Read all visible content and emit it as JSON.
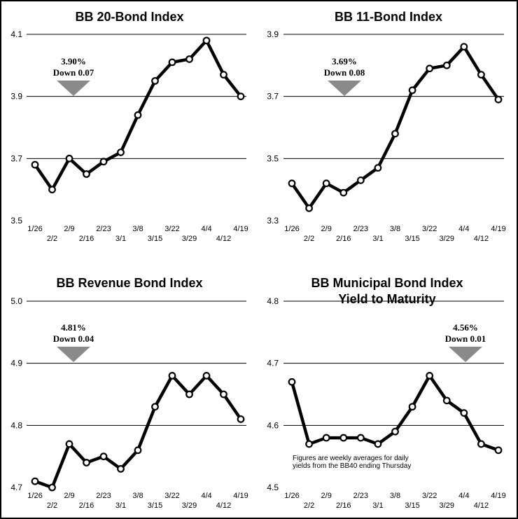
{
  "chart_data": [
    {
      "type": "line",
      "title": "BB 20-Bond Index",
      "categories": [
        "1/26",
        "2/2",
        "2/9",
        "2/16",
        "2/23",
        "3/1",
        "3/8",
        "3/15",
        "3/22",
        "3/29",
        "4/4",
        "4/12",
        "4/19"
      ],
      "values": [
        3.68,
        3.6,
        3.7,
        3.65,
        3.69,
        3.72,
        3.84,
        3.95,
        4.01,
        4.02,
        4.08,
        3.97,
        3.9
      ],
      "ylim": [
        3.5,
        4.1
      ],
      "yticks": [
        "3.5",
        "3.7",
        "3.9",
        "4.1"
      ],
      "grid": true,
      "annotation": {
        "value": "3.90%",
        "change": "Down 0.07"
      }
    },
    {
      "type": "line",
      "title": "BB 11-Bond Index",
      "categories": [
        "1/26",
        "2/2",
        "2/9",
        "2/16",
        "2/23",
        "3/1",
        "3/8",
        "3/15",
        "3/22",
        "3/29",
        "4/4",
        "4/12",
        "4/19"
      ],
      "values": [
        3.42,
        3.34,
        3.42,
        3.39,
        3.43,
        3.47,
        3.58,
        3.72,
        3.79,
        3.8,
        3.86,
        3.77,
        3.69
      ],
      "ylim": [
        3.3,
        3.9
      ],
      "yticks": [
        "3.3",
        "3.5",
        "3.7",
        "3.9"
      ],
      "grid": true,
      "annotation": {
        "value": "3.69%",
        "change": "Down 0.08"
      }
    },
    {
      "type": "line",
      "title": "BB Revenue Bond Index",
      "categories": [
        "1/26",
        "2/2",
        "2/9",
        "2/16",
        "2/23",
        "3/1",
        "3/8",
        "3/15",
        "3/22",
        "3/29",
        "4/4",
        "4/12",
        "4/19"
      ],
      "values": [
        4.71,
        4.7,
        4.77,
        4.74,
        4.75,
        4.73,
        4.76,
        4.83,
        4.88,
        4.85,
        4.88,
        4.85,
        4.81
      ],
      "ylim": [
        4.7,
        5.0
      ],
      "yticks": [
        "4.7",
        "4.8",
        "4.9",
        "5.0"
      ],
      "grid": true,
      "annotation": {
        "value": "4.81%",
        "change": "Down 0.04"
      }
    },
    {
      "type": "line",
      "title": "BB Municipal Bond Index",
      "subtitle": "Yield to Maturity",
      "categories": [
        "1/26",
        "2/2",
        "2/9",
        "2/16",
        "2/23",
        "3/1",
        "3/8",
        "3/15",
        "3/22",
        "3/29",
        "4/4",
        "4/12",
        "4/19"
      ],
      "values": [
        4.67,
        4.57,
        4.58,
        4.58,
        4.58,
        4.57,
        4.59,
        4.63,
        4.68,
        4.64,
        4.62,
        4.57,
        4.56
      ],
      "ylim": [
        4.5,
        4.8
      ],
      "yticks": [
        "4.5",
        "4.6",
        "4.7",
        "4.8"
      ],
      "grid": true,
      "annotation": {
        "value": "4.56%",
        "change": "Down 0.01"
      },
      "note": [
        "Figures are weekly averages for daily",
        "yields from the BB40 ending Thursday"
      ]
    }
  ]
}
